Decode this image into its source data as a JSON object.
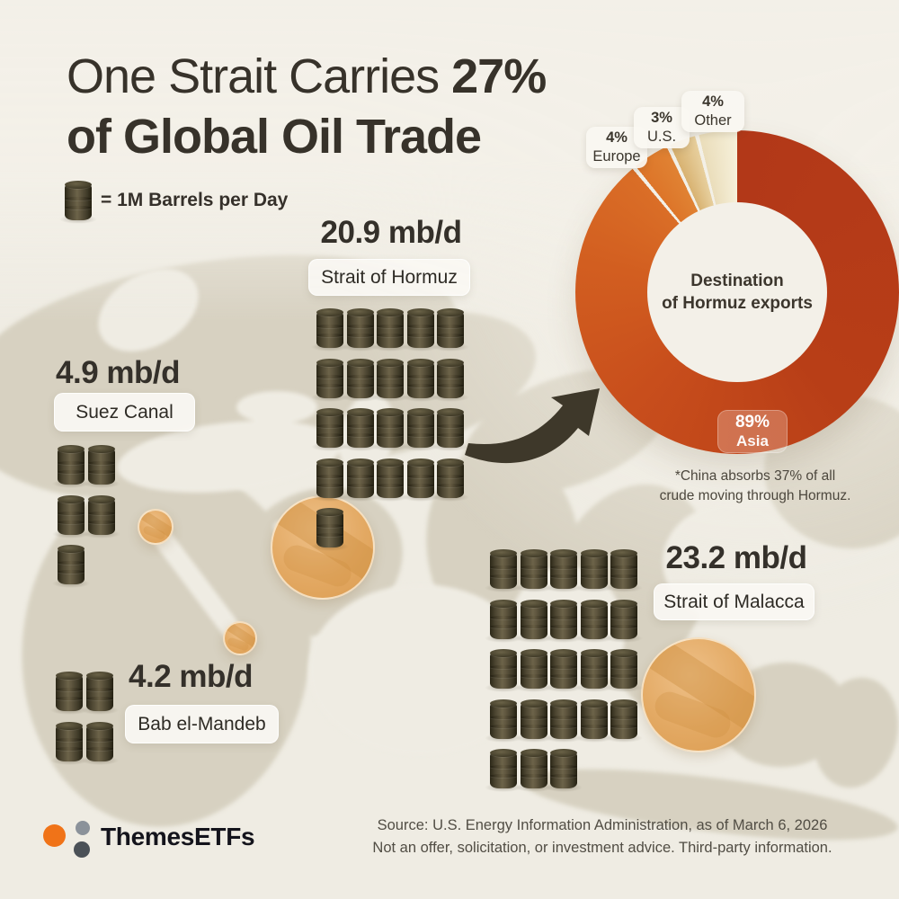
{
  "title": {
    "line1_regular": "One Strait Carries ",
    "line1_bold": "27%",
    "line2": "of Global Oil Trade"
  },
  "legend": {
    "label": "= 1M Barrels per Day",
    "icon": "oil-barrel-icon"
  },
  "straits": [
    {
      "id": "hormuz",
      "value": "20.9 mb/d",
      "name": "Strait of Hormuz",
      "barrels": 21
    },
    {
      "id": "suez",
      "value": "4.9 mb/d",
      "name": "Suez Canal",
      "barrels": 5
    },
    {
      "id": "bab",
      "value": "4.2 mb/d",
      "name": "Bab el-Mandeb",
      "barrels": 4
    },
    {
      "id": "malacca",
      "value": "23.2 mb/d",
      "name": "Strait of Malacca",
      "barrels": 23
    }
  ],
  "donut": {
    "center_line1": "Destination",
    "center_line2": "of Hormuz exports",
    "badge": {
      "pct": "89%",
      "label": "Asia"
    },
    "callouts": [
      {
        "pct": "4%",
        "label": "Europe"
      },
      {
        "pct": "3%",
        "label": "U.S."
      },
      {
        "pct": "4%",
        "label": "Other"
      }
    ],
    "note_line1": "*China absorbs 37% of all",
    "note_line2": "crude moving through Hormuz."
  },
  "chart_data": [
    {
      "type": "pie",
      "subtype": "donut",
      "title": "Destination of Hormuz exports",
      "labels": [
        "Asia",
        "Europe",
        "U.S.",
        "Other"
      ],
      "values": [
        89,
        4,
        3,
        4
      ],
      "unit": "%",
      "colors": [
        "#b5401b",
        "#df7b2c",
        "#ddba7c",
        "#f1e7c8"
      ],
      "annotation": "*China absorbs 37% of all crude moving through Hormuz.",
      "legend_position": "callouts-top-left"
    },
    {
      "type": "bar",
      "subtype": "pictogram (1 barrel = 1M barrels per day)",
      "title": "Oil flow through maritime chokepoints",
      "categories": [
        "Strait of Hormuz",
        "Suez Canal",
        "Bab el-Mandeb",
        "Strait of Malacca"
      ],
      "values": [
        20.9,
        4.9,
        4.2,
        23.2
      ],
      "unit": "mb/d"
    }
  ],
  "footer": {
    "brand": "ThemesETFs",
    "source_line1": "Source: U.S. Energy Information Administration, as of March 6, 2026",
    "source_line2": "Not an offer, solicitation, or investment advice. Third-party information."
  },
  "colors": {
    "background": "#efece3",
    "land": "#d7d1c1",
    "asia_red": "#b5401b",
    "europe_orange": "#df7b2c",
    "us_tan": "#ddba7c",
    "other_cream": "#f1e7c8",
    "chokepoint_orange": "#e3aa68",
    "barrel_olive": "#4c4531",
    "brand_orange": "#f07318",
    "ink": "#37322a"
  }
}
